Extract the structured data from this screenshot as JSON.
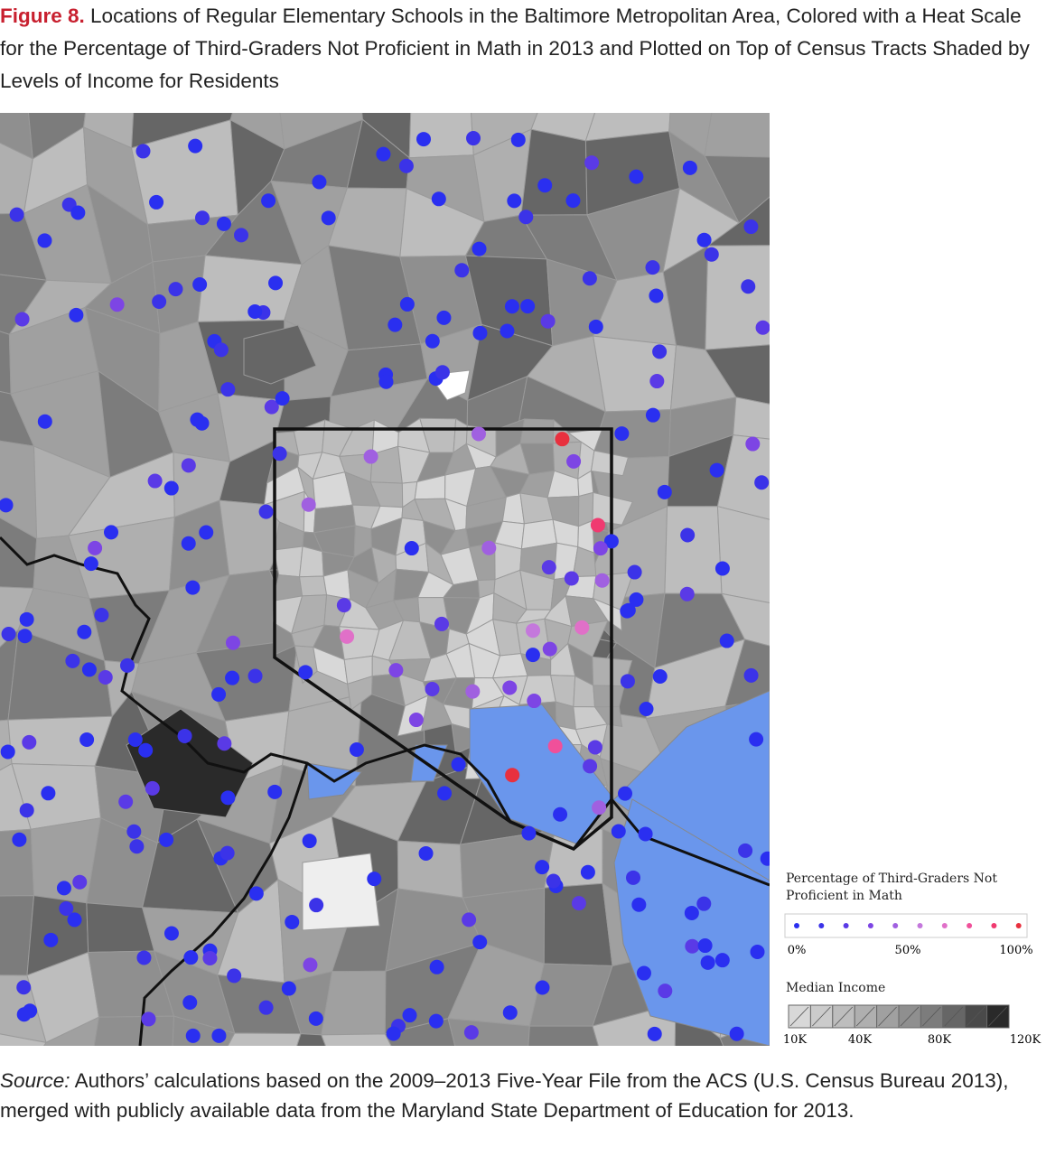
{
  "figure": {
    "label": "Figure 8.",
    "title": "Locations of Regular Elementary Schools in the Baltimore Metropolitan Area, Colored with a Heat Scale for the Percentage of Third-Graders Not Proficient in Math in 2013 and Plotted on Top of Census Tracts Shaded by Levels of Income for Residents"
  },
  "heat_legend": {
    "title": "Percentage of Third-Graders Not Proficient in Math",
    "colors": [
      "#2a2ff0",
      "#3b33e8",
      "#5a3ae6",
      "#7d45e4",
      "#a060e0",
      "#c478dc",
      "#e070c8",
      "#f0509a",
      "#f03a70",
      "#e8303e"
    ],
    "labels": [
      "0%",
      "50%",
      "100%"
    ]
  },
  "income_legend": {
    "title": "Median Income",
    "colors": [
      "#d8d8d8",
      "#cbcbcb",
      "#bdbdbd",
      "#afafaf",
      "#a0a0a0",
      "#8f8f8f",
      "#7c7c7c",
      "#666666",
      "#4a4a4a",
      "#2a2a2a"
    ],
    "labels": [
      "10K",
      "40K",
      "80K",
      "120K"
    ]
  },
  "source": {
    "label": "Source:",
    "text": "Authors’ calculations based on the 2009–2013 Five-Year File from the ACS (U.S. Census Bureau 2013), merged with publicly available data from the Maryland State Department of Education for 2013."
  }
}
